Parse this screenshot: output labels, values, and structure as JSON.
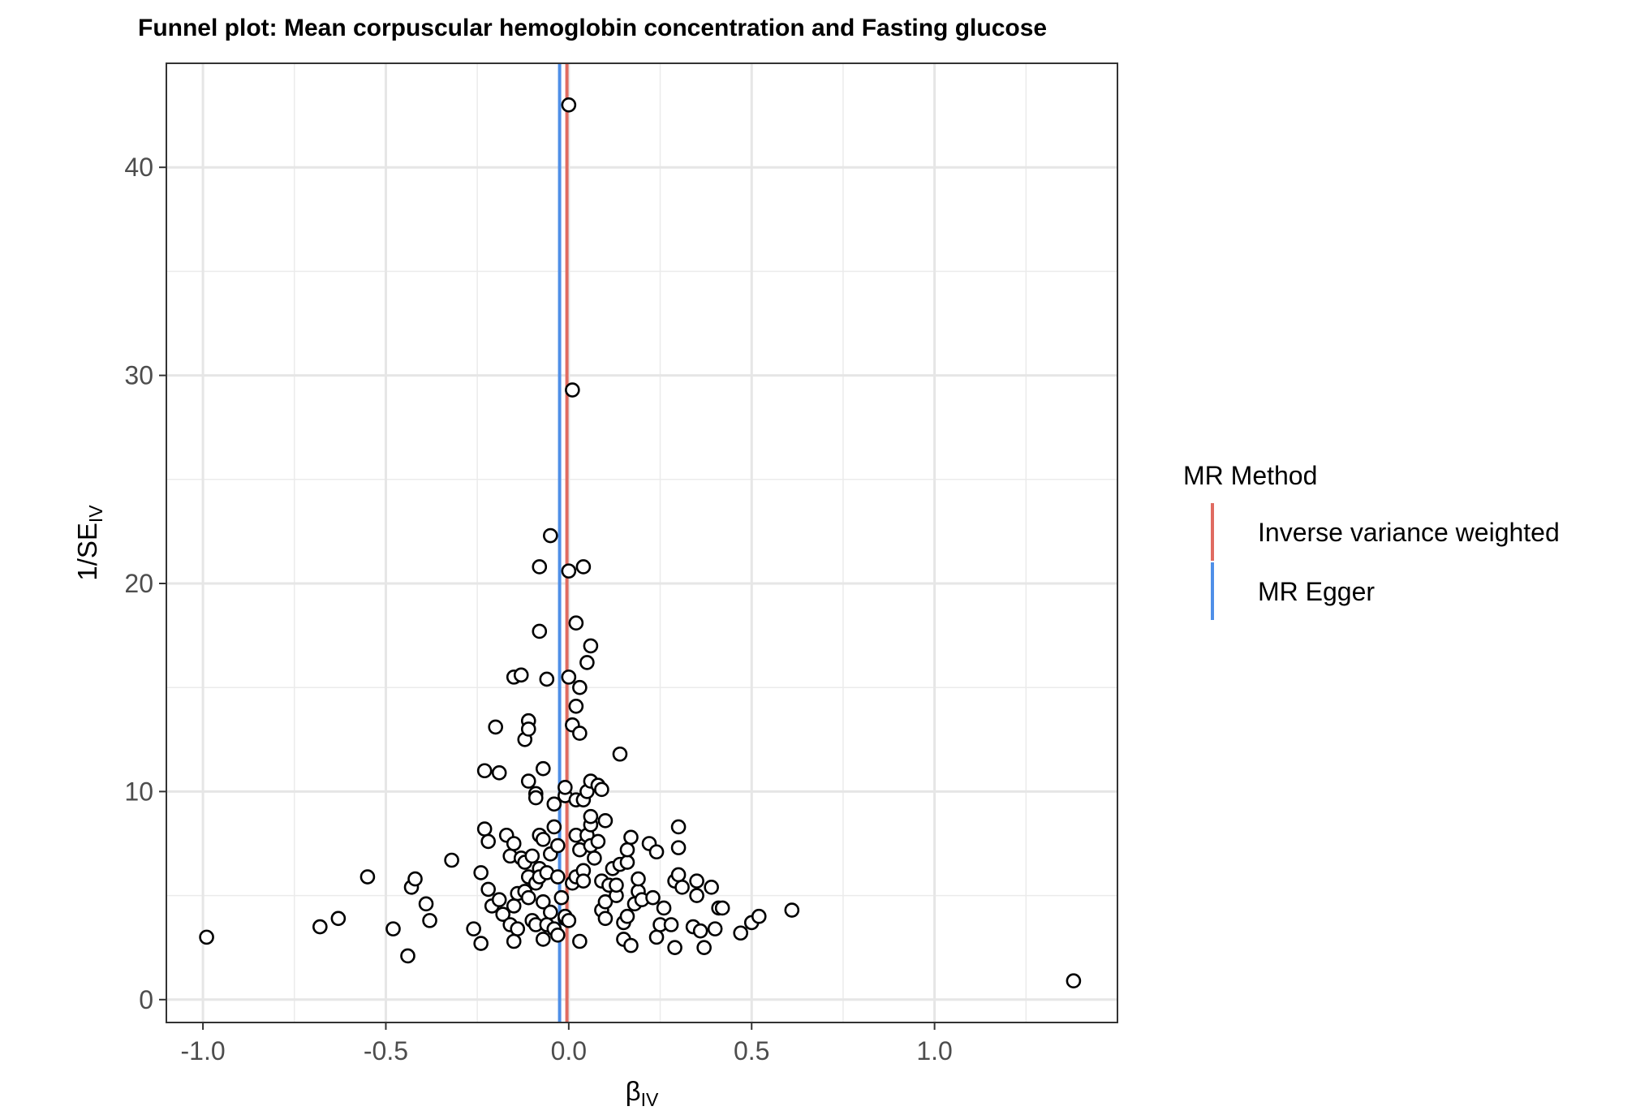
{
  "chart_data": {
    "type": "scatter",
    "title": "Funnel plot: Mean corpuscular hemoglobin concentration and Fasting glucose",
    "xlabel": {
      "main": "β",
      "sub": "IV"
    },
    "ylabel": {
      "main": "1/SE",
      "sub": "IV"
    },
    "xlim": [
      -1.1,
      1.5
    ],
    "ylim": [
      -1.1,
      45
    ],
    "xticks": [
      -1.0,
      -0.5,
      0.0,
      0.5,
      1.0
    ],
    "xtick_labels": [
      "-1.0",
      "-0.5",
      "0.0",
      "0.5",
      "1.0"
    ],
    "yticks": [
      0,
      10,
      20,
      30,
      40
    ],
    "ytick_labels": [
      "0",
      "10",
      "20",
      "30",
      "40"
    ],
    "grid": true,
    "legend": {
      "title": "MR Method",
      "position": "right",
      "entries": [
        {
          "label": "Inverse variance weighted",
          "color": "#E06B61"
        },
        {
          "label": "MR Egger",
          "color": "#4F8FE8"
        }
      ]
    },
    "lines": [
      {
        "name": "Inverse variance weighted",
        "x": -0.005,
        "color": "#E06B61"
      },
      {
        "name": "MR Egger",
        "x": -0.025,
        "color": "#4F8FE8"
      }
    ],
    "points": [
      [
        -0.99,
        3.0
      ],
      [
        -0.68,
        3.5
      ],
      [
        -0.63,
        3.9
      ],
      [
        -0.55,
        5.9
      ],
      [
        -0.48,
        3.4
      ],
      [
        -0.44,
        2.1
      ],
      [
        -0.43,
        5.4
      ],
      [
        -0.42,
        5.8
      ],
      [
        -0.39,
        4.6
      ],
      [
        -0.38,
        3.8
      ],
      [
        -0.32,
        6.7
      ],
      [
        -0.26,
        3.4
      ],
      [
        -0.24,
        2.7
      ],
      [
        -0.24,
        6.1
      ],
      [
        -0.23,
        8.2
      ],
      [
        -0.22,
        5.3
      ],
      [
        -0.22,
        7.6
      ],
      [
        -0.21,
        4.5
      ],
      [
        -0.19,
        4.8
      ],
      [
        -0.18,
        4.1
      ],
      [
        -0.17,
        7.9
      ],
      [
        -0.16,
        3.6
      ],
      [
        -0.16,
        6.9
      ],
      [
        -0.15,
        4.5
      ],
      [
        -0.15,
        7.5
      ],
      [
        -0.15,
        2.8
      ],
      [
        -0.14,
        3.4
      ],
      [
        -0.14,
        5.1
      ],
      [
        -0.13,
        6.8
      ],
      [
        -0.12,
        5.2
      ],
      [
        -0.12,
        6.6
      ],
      [
        -0.11,
        4.9
      ],
      [
        -0.11,
        5.9
      ],
      [
        -0.1,
        6.9
      ],
      [
        -0.1,
        3.8
      ],
      [
        -0.09,
        5.6
      ],
      [
        -0.09,
        3.6
      ],
      [
        -0.08,
        7.9
      ],
      [
        -0.08,
        6.3
      ],
      [
        -0.08,
        5.9
      ],
      [
        -0.07,
        7.7
      ],
      [
        -0.07,
        4.7
      ],
      [
        -0.07,
        2.9
      ],
      [
        -0.06,
        6.1
      ],
      [
        -0.06,
        3.6
      ],
      [
        -0.05,
        4.2
      ],
      [
        -0.05,
        7.0
      ],
      [
        -0.04,
        8.3
      ],
      [
        -0.04,
        3.4
      ],
      [
        -0.03,
        3.1
      ],
      [
        -0.03,
        5.9
      ],
      [
        -0.03,
        7.4
      ],
      [
        -0.02,
        4.9
      ],
      [
        -0.01,
        3.9
      ],
      [
        -0.01,
        4.0
      ],
      [
        0.0,
        3.8
      ],
      [
        0.01,
        5.6
      ],
      [
        0.02,
        5.9
      ],
      [
        0.02,
        7.9
      ],
      [
        0.03,
        7.2
      ],
      [
        0.03,
        2.8
      ],
      [
        0.04,
        6.2
      ],
      [
        0.04,
        5.7
      ],
      [
        0.05,
        7.9
      ],
      [
        0.06,
        8.4
      ],
      [
        0.06,
        7.4
      ],
      [
        0.07,
        6.8
      ],
      [
        0.08,
        7.6
      ],
      [
        0.09,
        5.7
      ],
      [
        0.09,
        4.3
      ],
      [
        0.1,
        4.7
      ],
      [
        0.1,
        3.9
      ],
      [
        0.11,
        5.5
      ],
      [
        0.12,
        6.3
      ],
      [
        0.13,
        5.0
      ],
      [
        0.13,
        5.5
      ],
      [
        0.14,
        6.5
      ],
      [
        0.15,
        3.7
      ],
      [
        0.15,
        2.9
      ],
      [
        0.16,
        6.6
      ],
      [
        0.16,
        7.2
      ],
      [
        0.16,
        4.0
      ],
      [
        0.17,
        7.8
      ],
      [
        0.17,
        2.6
      ],
      [
        0.18,
        4.6
      ],
      [
        0.19,
        5.2
      ],
      [
        0.19,
        5.8
      ],
      [
        0.2,
        4.8
      ],
      [
        0.22,
        7.5
      ],
      [
        0.23,
        4.9
      ],
      [
        0.24,
        3.0
      ],
      [
        0.24,
        7.1
      ],
      [
        0.25,
        3.6
      ],
      [
        0.26,
        4.4
      ],
      [
        0.28,
        3.6
      ],
      [
        0.29,
        2.5
      ],
      [
        0.29,
        5.7
      ],
      [
        0.3,
        6.0
      ],
      [
        0.3,
        8.3
      ],
      [
        0.3,
        7.3
      ],
      [
        0.31,
        5.4
      ],
      [
        0.34,
        3.5
      ],
      [
        0.35,
        5.0
      ],
      [
        0.35,
        5.7
      ],
      [
        0.36,
        3.3
      ],
      [
        0.37,
        2.5
      ],
      [
        0.39,
        5.4
      ],
      [
        0.4,
        3.4
      ],
      [
        0.41,
        4.4
      ],
      [
        0.42,
        4.4
      ],
      [
        0.47,
        3.2
      ],
      [
        0.5,
        3.7
      ],
      [
        0.52,
        4.0
      ],
      [
        0.61,
        4.3
      ],
      [
        1.38,
        0.9
      ],
      [
        -0.23,
        11.0
      ],
      [
        -0.2,
        13.1
      ],
      [
        -0.19,
        10.9
      ],
      [
        -0.15,
        15.5
      ],
      [
        -0.13,
        15.6
      ],
      [
        -0.12,
        12.5
      ],
      [
        -0.11,
        13.4
      ],
      [
        -0.11,
        13.0
      ],
      [
        -0.11,
        10.5
      ],
      [
        -0.09,
        9.9
      ],
      [
        -0.09,
        9.7
      ],
      [
        -0.07,
        11.1
      ],
      [
        -0.06,
        15.4
      ],
      [
        -0.04,
        9.4
      ],
      [
        -0.01,
        9.8
      ],
      [
        -0.01,
        10.2
      ],
      [
        0.0,
        15.5
      ],
      [
        0.01,
        13.2
      ],
      [
        0.02,
        9.6
      ],
      [
        0.02,
        14.1
      ],
      [
        0.03,
        12.8
      ],
      [
        0.03,
        15.0
      ],
      [
        0.04,
        9.6
      ],
      [
        0.05,
        10.0
      ],
      [
        0.06,
        8.8
      ],
      [
        0.06,
        10.5
      ],
      [
        0.08,
        10.3
      ],
      [
        0.09,
        10.1
      ],
      [
        0.1,
        8.6
      ],
      [
        0.14,
        11.8
      ],
      [
        0.05,
        16.2
      ],
      [
        0.06,
        17.0
      ],
      [
        0.02,
        18.1
      ],
      [
        -0.08,
        17.7
      ],
      [
        -0.08,
        20.8
      ],
      [
        -0.05,
        22.3
      ],
      [
        0.0,
        20.6
      ],
      [
        0.04,
        20.8
      ],
      [
        0.01,
        29.3
      ],
      [
        0.0,
        43.0
      ]
    ]
  }
}
